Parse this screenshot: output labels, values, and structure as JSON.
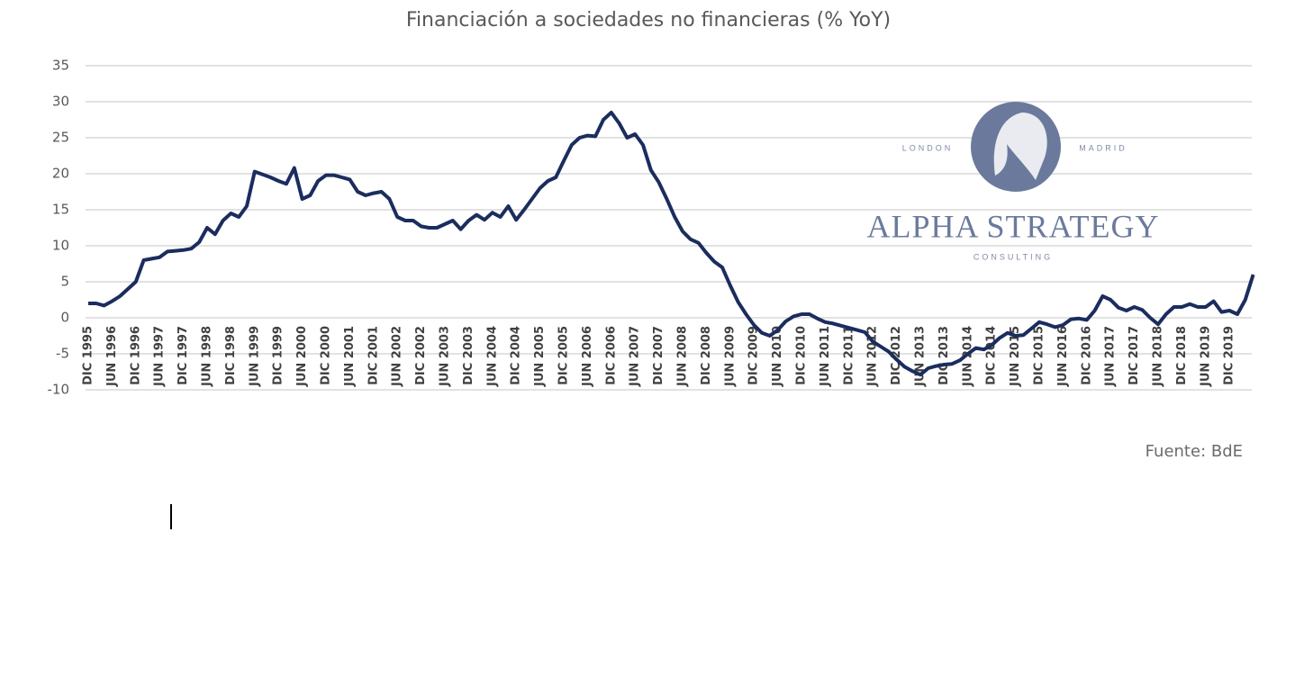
{
  "chart_data": {
    "type": "line",
    "title": "Financiación a sociedades no financieras (% YoY)",
    "categories": [
      "DIC 1995",
      null,
      null,
      "JUN 1996",
      null,
      null,
      "DIC 1996",
      null,
      null,
      "JUN 1997",
      null,
      null,
      "DIC 1997",
      null,
      null,
      "JUN 1998",
      null,
      null,
      "DIC 1998",
      null,
      null,
      "JUN 1999",
      null,
      null,
      "DIC 1999",
      null,
      null,
      "JUN 2000",
      null,
      null,
      "DIC 2000",
      null,
      null,
      "JUN 2001",
      null,
      null,
      "DIC 2001",
      null,
      null,
      "JUN 2002",
      null,
      null,
      "DIC 2002",
      null,
      null,
      "JUN 2003",
      null,
      null,
      "DIC 2003",
      null,
      null,
      "JUN 2004",
      null,
      null,
      "DIC 2004",
      null,
      null,
      "JUN 2005",
      null,
      null,
      "DIC 2005",
      null,
      null,
      "JUN 2006",
      null,
      null,
      "DIC 2006",
      null,
      null,
      "JUN 2007",
      null,
      null,
      "DIC 2007",
      null,
      null,
      "JUN 2008",
      null,
      null,
      "DIC 2008",
      null,
      null,
      "JUN 2009",
      null,
      null,
      "DIC 2009",
      null,
      null,
      "JUN 2010",
      null,
      null,
      "DIC 2010",
      null,
      null,
      "JUN 2011",
      null,
      null,
      "DIC 2011",
      null,
      null,
      "JUN 2012",
      null,
      null,
      "DIC 2012",
      null,
      null,
      "JUN 2013",
      null,
      null,
      "DIC 2013",
      null,
      null,
      "JUN 2014",
      null,
      null,
      "DIC 2014",
      null,
      null,
      "JUN 2015",
      null,
      null,
      "DIC 2015",
      null,
      null,
      "JUN 2016",
      null,
      null,
      "DIC 2016",
      null,
      null,
      "JUN 2017",
      null,
      null,
      "DIC 2017",
      null,
      null,
      "JUN 2018",
      null,
      null,
      "DIC 2018",
      null,
      null,
      "JUN 2019",
      null,
      null,
      "DIC 2019",
      null,
      null,
      null
    ],
    "values": [
      2,
      2,
      1.7,
      2.3,
      3,
      4,
      5,
      8,
      8.2,
      8.4,
      9.2,
      9.3,
      9.4,
      9.6,
      10.5,
      12.5,
      11.6,
      13.5,
      14.5,
      14,
      15.5,
      20.3,
      19.9,
      19.5,
      19,
      18.6,
      20.8,
      16.5,
      17,
      19,
      19.8,
      19.8,
      19.5,
      19.2,
      17.5,
      17,
      17.3,
      17.5,
      16.5,
      14,
      13.5,
      13.5,
      12.7,
      12.5,
      12.5,
      13,
      13.5,
      12.3,
      13.5,
      14.3,
      13.6,
      14.6,
      14,
      15.5,
      13.6,
      15,
      16.5,
      18,
      19,
      19.5,
      21.8,
      24,
      25,
      25.3,
      25.2,
      27.5,
      28.5,
      27,
      25,
      25.5,
      24,
      20.5,
      18.8,
      16.5,
      14,
      12,
      10.9,
      10.4,
      9,
      7.8,
      7,
      4.5,
      2.2,
      0.5,
      -1,
      -2.1,
      -2.5,
      -1.7,
      -0.5,
      0.2,
      0.5,
      0.5,
      -0.1,
      -0.6,
      -0.8,
      -1.1,
      -1.4,
      -1.7,
      -2,
      -3.3,
      -4,
      -4.7,
      -5.8,
      -6.8,
      -7.4,
      -7.9,
      -7,
      -6.7,
      -6.5,
      -6.4,
      -5.9,
      -5,
      -4.2,
      -4.4,
      -3.8,
      -2.8,
      -2.1,
      -2.5,
      -2.4,
      -1.5,
      -0.6,
      -0.9,
      -1.3,
      -1,
      -0.2,
      -0.1,
      -0.3,
      1,
      3,
      2.5,
      1.4,
      1,
      1.5,
      1.1,
      0,
      -0.9,
      0.5,
      1.5,
      1.5,
      1.9,
      1.5,
      1.5,
      2.3,
      0.8,
      1,
      0.5,
      2.5,
      6
    ],
    "color": "#1b2d5e",
    "ylim": [
      -10,
      35
    ],
    "yticks": [
      -10,
      -5,
      0,
      5,
      10,
      15,
      20,
      25,
      30,
      35
    ],
    "grid": true,
    "source": "Fuente: BdE"
  },
  "logo": {
    "left": "LONDON",
    "right": "MADRID",
    "name": "ALPHA STRATEGY",
    "tagline": "CONSULTING"
  }
}
